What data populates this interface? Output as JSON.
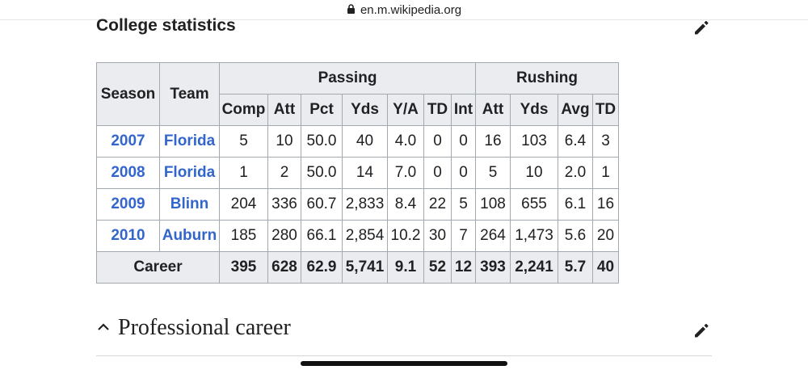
{
  "browser": {
    "url": "en.m.wikipedia.org"
  },
  "section": {
    "title": "College statistics"
  },
  "table": {
    "header_season": "Season",
    "header_team": "Team",
    "group_passing": "Passing",
    "group_rushing": "Rushing",
    "columns": [
      "Comp",
      "Att",
      "Pct",
      "Yds",
      "Y/A",
      "TD",
      "Int",
      "Att",
      "Yds",
      "Avg",
      "TD"
    ],
    "rows": [
      {
        "season": "2007",
        "team": "Florida",
        "stats": [
          "5",
          "10",
          "50.0",
          "40",
          "4.0",
          "0",
          "0",
          "16",
          "103",
          "6.4",
          "3"
        ]
      },
      {
        "season": "2008",
        "team": "Florida",
        "stats": [
          "1",
          "2",
          "50.0",
          "14",
          "7.0",
          "0",
          "0",
          "5",
          "10",
          "2.0",
          "1"
        ]
      },
      {
        "season": "2009",
        "team": "Blinn",
        "stats": [
          "204",
          "336",
          "60.7",
          "2,833",
          "8.4",
          "22",
          "5",
          "108",
          "655",
          "6.1",
          "16"
        ]
      },
      {
        "season": "2010",
        "team": "Auburn",
        "stats": [
          "185",
          "280",
          "66.1",
          "2,854",
          "10.2",
          "30",
          "7",
          "264",
          "1,473",
          "5.6",
          "20"
        ]
      }
    ],
    "career": {
      "label": "Career",
      "stats": [
        "395",
        "628",
        "62.9",
        "5,741",
        "9.1",
        "52",
        "12",
        "393",
        "2,241",
        "5.7",
        "40"
      ]
    }
  },
  "next_section": {
    "title": "Professional career"
  },
  "icons": {
    "lock": "lock-icon",
    "edit": "pencil-icon",
    "collapse": "chevron-up-icon"
  },
  "colors": {
    "link": "#3366cc",
    "header_bg": "#eaecf0",
    "border": "#a2a9b1"
  }
}
